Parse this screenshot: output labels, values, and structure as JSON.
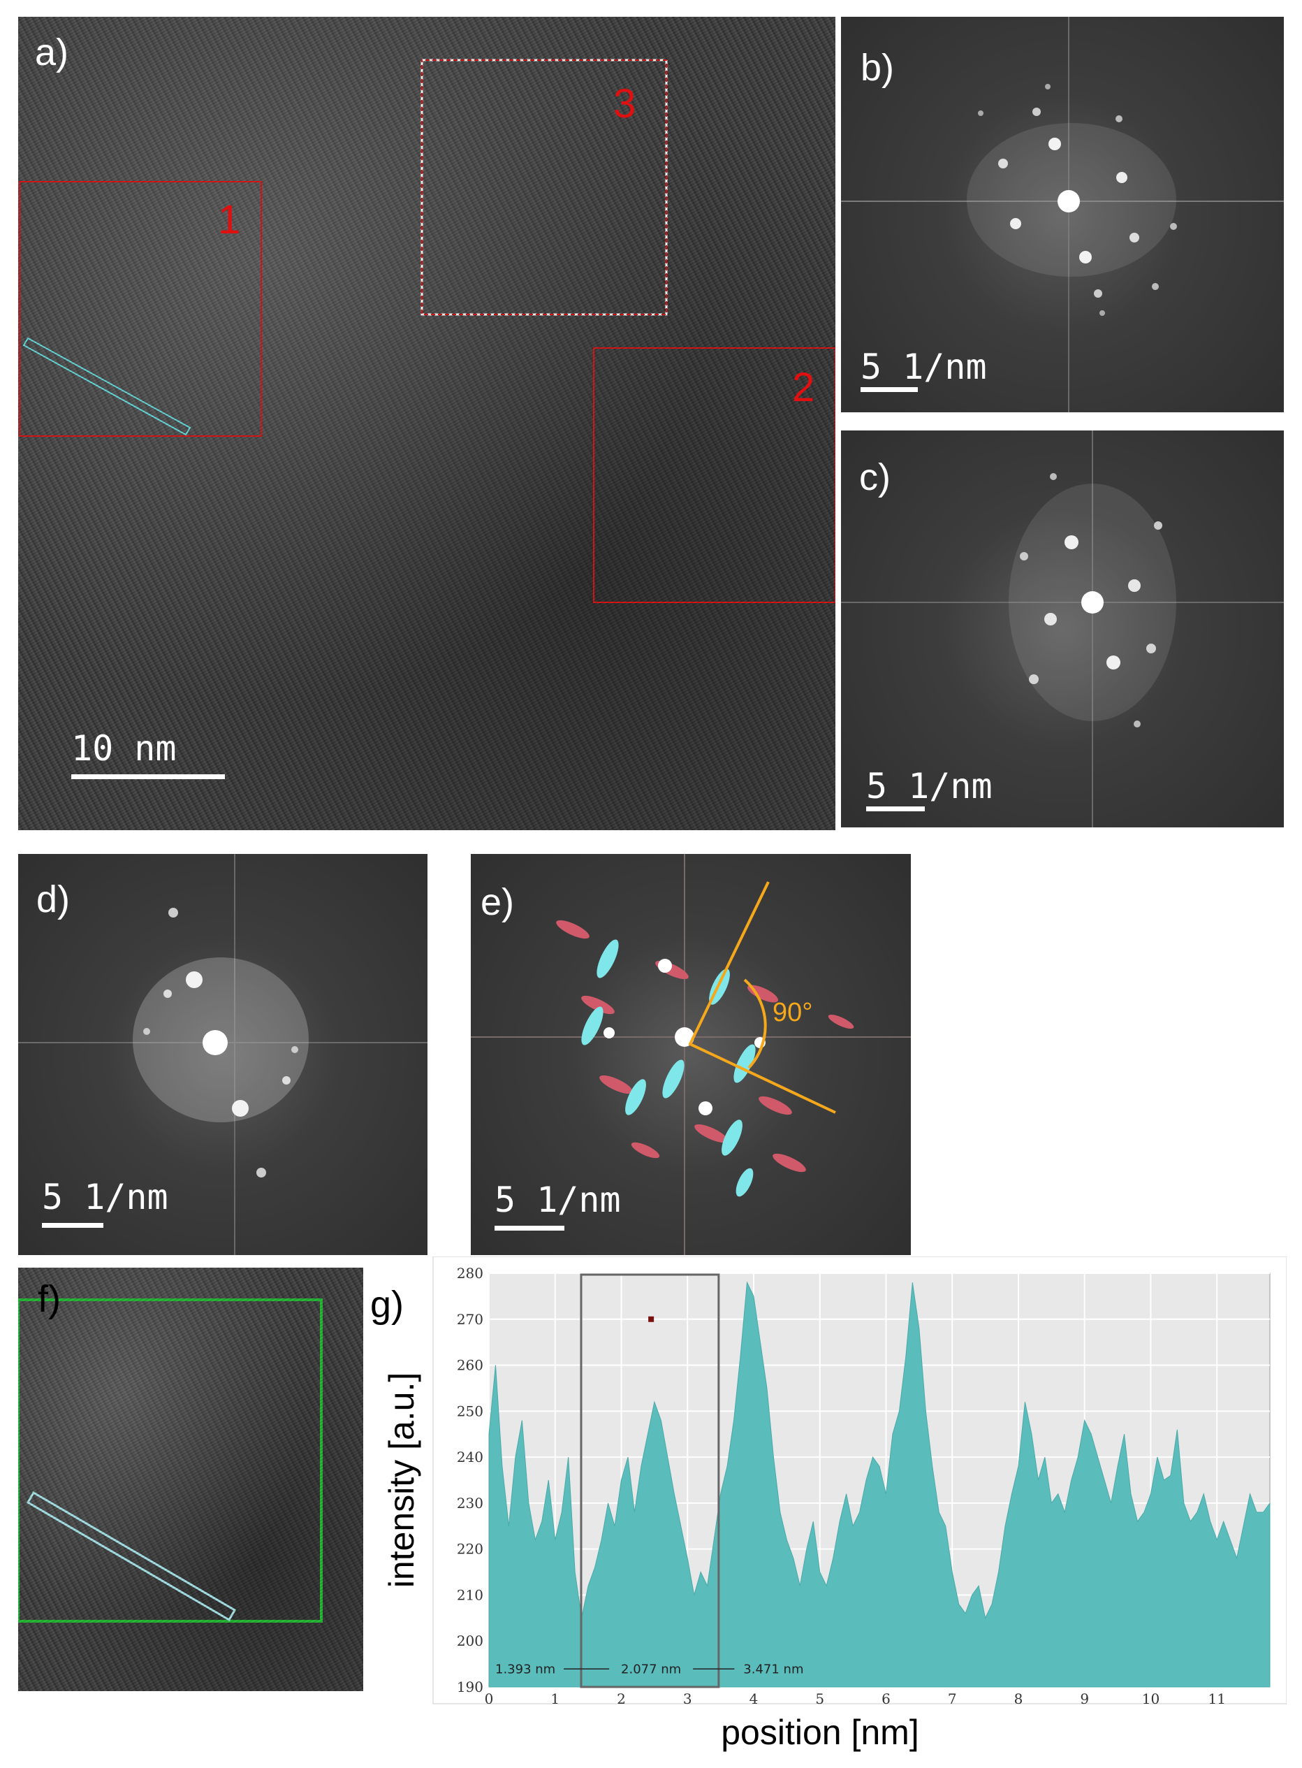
{
  "panels": {
    "a": {
      "label": "a)",
      "scalebar": "10 nm",
      "rois": [
        "1",
        "2",
        "3"
      ]
    },
    "b": {
      "label": "b)",
      "scalebar": "5 1/nm"
    },
    "c": {
      "label": "c)",
      "scalebar": "5 1/nm"
    },
    "d": {
      "label": "d)",
      "scalebar": "5 1/nm"
    },
    "e": {
      "label": "e)",
      "scalebar": "5 1/nm",
      "angle": "90°"
    },
    "f": {
      "label": "f)"
    },
    "g": {
      "label": "g)"
    }
  },
  "colors": {
    "roi": "#e01010",
    "cyan": "#66dde0",
    "angle": "#f5a81c",
    "green_box": "#22bb33",
    "profile_fill": "#5bbcbc"
  },
  "chart_data": {
    "type": "area",
    "xlabel": "position [nm]",
    "ylabel": "intensity [a.u.]",
    "xlim": [
      0,
      11.8
    ],
    "ylim": [
      190,
      280
    ],
    "xticks": [
      "0",
      "1",
      "2",
      "3",
      "4",
      "5",
      "6",
      "7",
      "8",
      "9",
      "10",
      "11"
    ],
    "yticks": [
      "190",
      "200",
      "210",
      "220",
      "230",
      "240",
      "250",
      "260",
      "270",
      "280"
    ],
    "grid": true,
    "x": [
      0,
      0.1,
      0.2,
      0.3,
      0.4,
      0.5,
      0.6,
      0.7,
      0.8,
      0.9,
      1.0,
      1.1,
      1.2,
      1.3,
      1.4,
      1.5,
      1.6,
      1.7,
      1.8,
      1.9,
      2.0,
      2.1,
      2.2,
      2.3,
      2.4,
      2.5,
      2.6,
      2.7,
      2.8,
      2.9,
      3.0,
      3.1,
      3.2,
      3.3,
      3.4,
      3.5,
      3.6,
      3.7,
      3.8,
      3.9,
      4.0,
      4.1,
      4.2,
      4.3,
      4.4,
      4.5,
      4.6,
      4.7,
      4.8,
      4.9,
      5.0,
      5.1,
      5.2,
      5.3,
      5.4,
      5.5,
      5.6,
      5.7,
      5.8,
      5.9,
      6.0,
      6.1,
      6.2,
      6.3,
      6.4,
      6.5,
      6.6,
      6.7,
      6.8,
      6.9,
      7.0,
      7.1,
      7.2,
      7.3,
      7.4,
      7.5,
      7.6,
      7.7,
      7.8,
      7.9,
      8.0,
      8.1,
      8.2,
      8.3,
      8.4,
      8.5,
      8.6,
      8.7,
      8.8,
      8.9,
      9.0,
      9.1,
      9.2,
      9.3,
      9.4,
      9.5,
      9.6,
      9.7,
      9.8,
      9.9,
      10.0,
      10.1,
      10.2,
      10.3,
      10.4,
      10.5,
      10.6,
      10.7,
      10.8,
      10.9,
      11.0,
      11.1,
      11.2,
      11.3,
      11.4,
      11.5,
      11.6,
      11.7,
      11.8
    ],
    "values": [
      245,
      260,
      238,
      225,
      240,
      248,
      230,
      222,
      226,
      235,
      222,
      228,
      240,
      215,
      205,
      212,
      216,
      222,
      230,
      225,
      235,
      240,
      228,
      238,
      245,
      252,
      248,
      240,
      232,
      225,
      218,
      210,
      215,
      212,
      222,
      232,
      238,
      248,
      262,
      278,
      275,
      265,
      255,
      240,
      228,
      222,
      218,
      212,
      220,
      226,
      215,
      212,
      218,
      226,
      232,
      225,
      228,
      235,
      240,
      238,
      232,
      245,
      250,
      262,
      278,
      268,
      250,
      238,
      228,
      225,
      215,
      208,
      206,
      210,
      212,
      205,
      208,
      215,
      225,
      232,
      238,
      252,
      245,
      235,
      240,
      230,
      232,
      228,
      235,
      240,
      248,
      245,
      240,
      235,
      230,
      238,
      245,
      232,
      226,
      228,
      232,
      240,
      235,
      236,
      246,
      230,
      226,
      228,
      232,
      226,
      222,
      226,
      222,
      218,
      225,
      232,
      228,
      228,
      230
    ],
    "profile_bar": [
      "1.393 nm",
      "2.077 nm",
      "3.471 nm"
    ],
    "selection_box": [
      1.393,
      3.471
    ]
  }
}
